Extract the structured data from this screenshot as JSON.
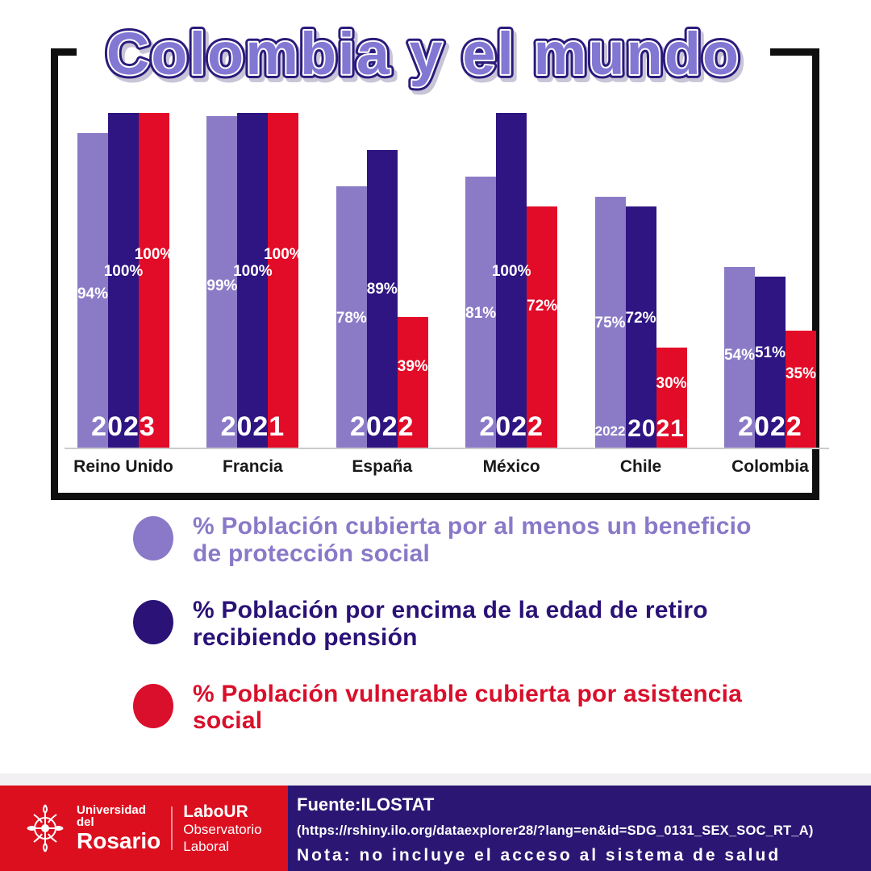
{
  "title": "Colombia y el mundo",
  "chart_data": {
    "type": "bar",
    "categories": [
      "Reino Unido",
      "Francia",
      "España",
      "México",
      "Chile",
      "Colombia"
    ],
    "series": [
      {
        "name": "% Población cubierta por al menos un beneficio de protección social",
        "color": "#8b7bc7",
        "values": [
          94,
          99,
          78,
          81,
          75,
          54
        ]
      },
      {
        "name": "% Población por encima de la edad de retiro recibiendo pensión",
        "color": "#2e1582",
        "values": [
          100,
          100,
          89,
          100,
          72,
          51
        ]
      },
      {
        "name": "% Población vulnerable cubierta por asistencia social",
        "color": "#e20b28",
        "values": [
          100,
          100,
          39,
          72,
          30,
          35
        ]
      }
    ],
    "value_suffix": "%",
    "year_labels": [
      {
        "main": "2023"
      },
      {
        "main": "2021"
      },
      {
        "main": "2022"
      },
      {
        "main": "2022"
      },
      {
        "small": "2022",
        "main": "2021"
      },
      {
        "main": "2022"
      }
    ],
    "ylim": [
      0,
      100
    ],
    "xlabel": "",
    "ylabel": "",
    "grid": false,
    "legend_position": "below"
  },
  "legend": {
    "items": [
      {
        "label": "% Población cubierta por al menos un beneficio de protección social",
        "color": "#8a79c8"
      },
      {
        "label": "% Población por encima de la edad de retiro recibiendo pensión",
        "color": "#2a1277"
      },
      {
        "label": "%  Población vulnerable cubierta por asistencia social",
        "color": "#d90f2b"
      }
    ]
  },
  "footer": {
    "logo": {
      "university_top": "Universidad del",
      "university_bottom": "Rosario",
      "brand_top": "LaboUR",
      "brand_bottom": "Observatorio Laboral"
    },
    "source_label": "Fuente:ILOSTAT",
    "source_url": "(https://rshiny.ilo.org/dataexplorer28/?lang=en&id=SDG_0131_SEX_SOC_RT_A)",
    "note": "Nota: no incluye el acceso al sistema de salud",
    "colors": {
      "red": "#dc0f1f",
      "navy": "#2b1773"
    }
  },
  "colors": {
    "title_fill": "#8277d2",
    "title_outline": "#2b1b7b",
    "frame": "#0f0f0f",
    "baseline": "#cbcbcb",
    "bar_light_purple": "#8b7bc7",
    "bar_navy": "#2e1582",
    "bar_red": "#e20b28"
  }
}
